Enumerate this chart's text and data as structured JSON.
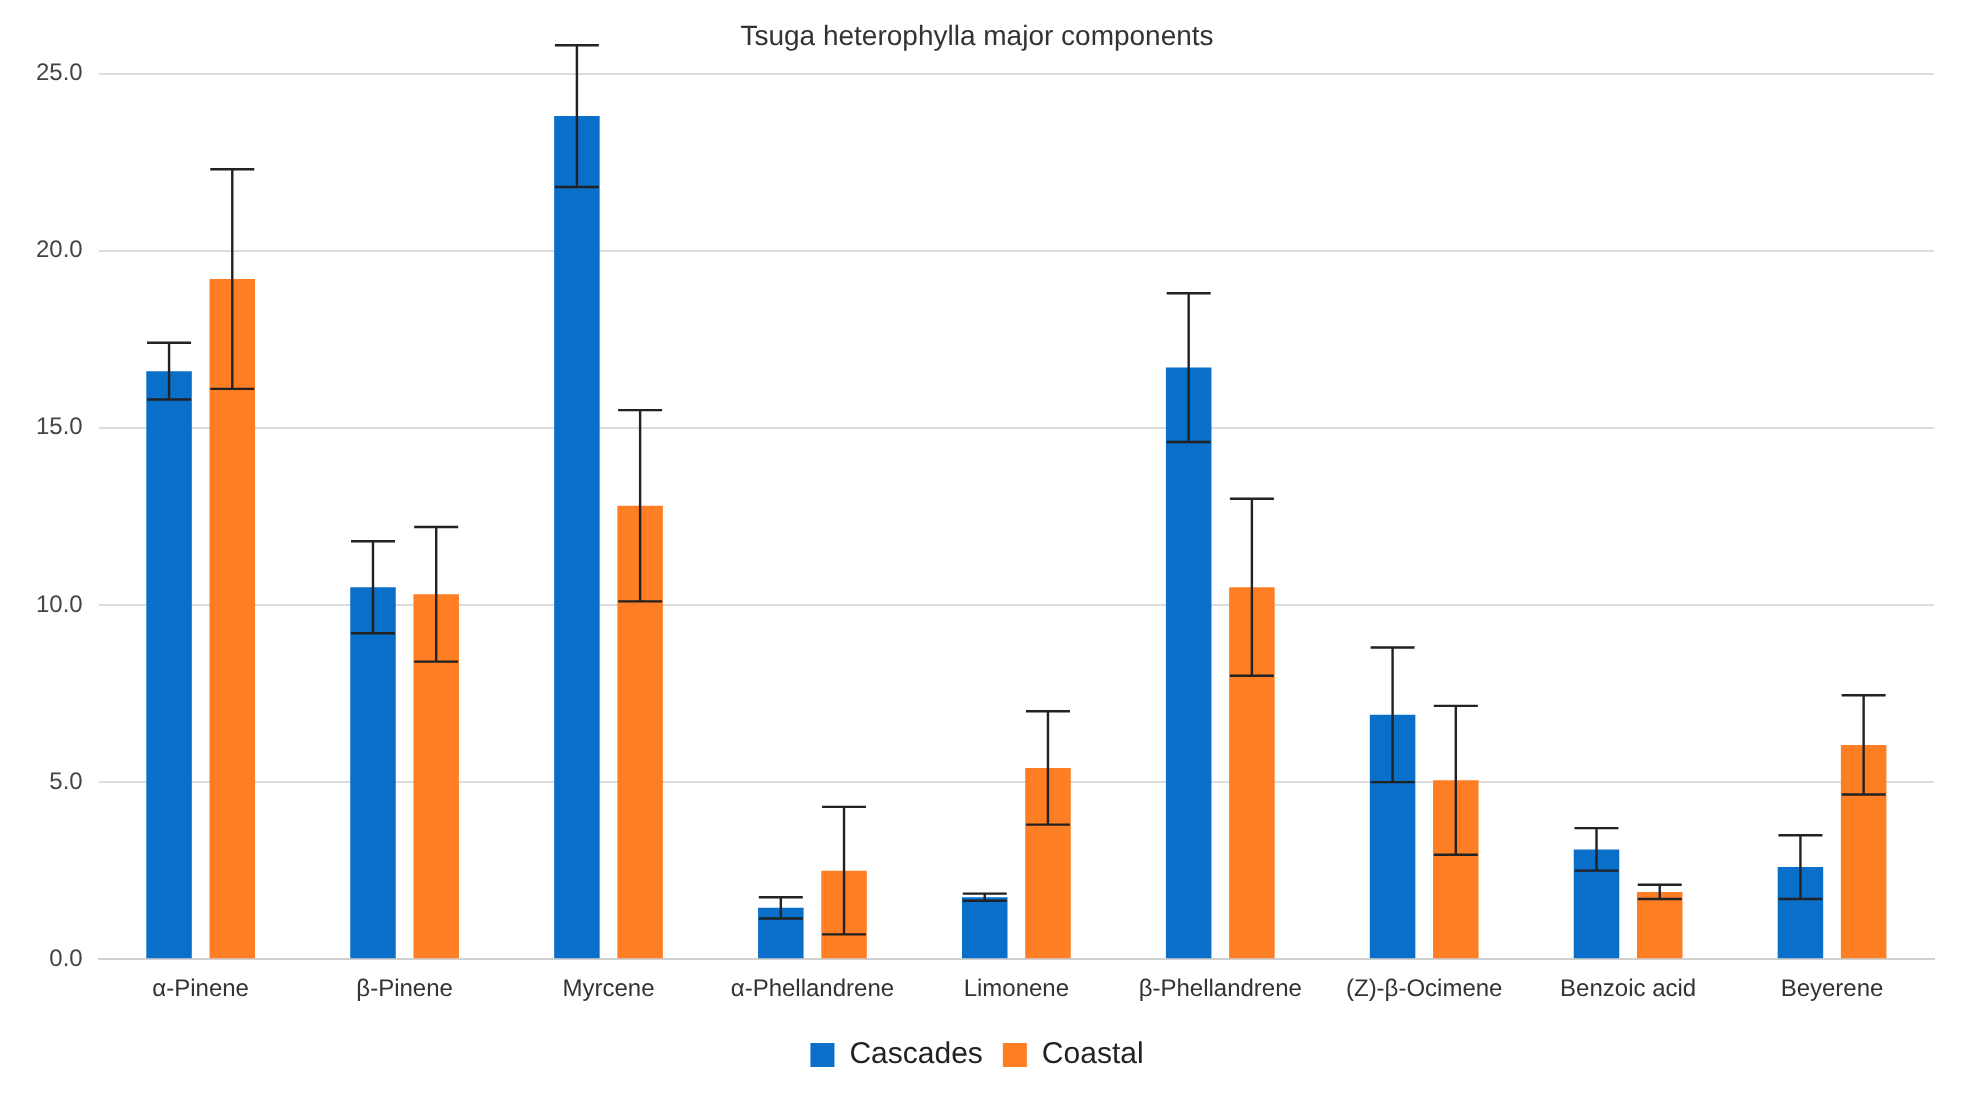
{
  "chart_data": {
    "type": "bar",
    "title": "Tsuga heterophylla major components",
    "categories": [
      "α-Pinene",
      "β-Pinene",
      "Myrcene",
      "α-Phellandrene",
      "Limonene",
      "β-Phellandrene",
      "(Z)-β-Ocimene",
      "Benzoic acid",
      "Beyerene"
    ],
    "series": [
      {
        "name": "Cascades",
        "color": "#0a6fc8",
        "values": [
          16.6,
          10.5,
          23.8,
          1.45,
          1.75,
          16.7,
          6.9,
          3.1,
          2.6
        ],
        "errors": [
          0.8,
          1.3,
          2.0,
          0.3,
          0.1,
          2.1,
          1.9,
          0.6,
          0.9
        ]
      },
      {
        "name": "Coastal",
        "color": "#fd7e23",
        "values": [
          19.2,
          10.3,
          12.8,
          2.5,
          5.4,
          10.5,
          5.05,
          1.9,
          6.05
        ],
        "errors": [
          3.1,
          1.9,
          2.7,
          1.8,
          1.6,
          2.5,
          2.1,
          0.2,
          1.4
        ]
      }
    ],
    "ylim": [
      0,
      25
    ],
    "yticks": [
      {
        "value": 0,
        "label": "0.0"
      },
      {
        "value": 5,
        "label": "5.0"
      },
      {
        "value": 10,
        "label": "10.0"
      },
      {
        "value": 15,
        "label": "15.0"
      },
      {
        "value": 20,
        "label": "20.0"
      },
      {
        "value": 25,
        "label": "25.0"
      }
    ],
    "grid": "y",
    "legend": "bottom"
  }
}
